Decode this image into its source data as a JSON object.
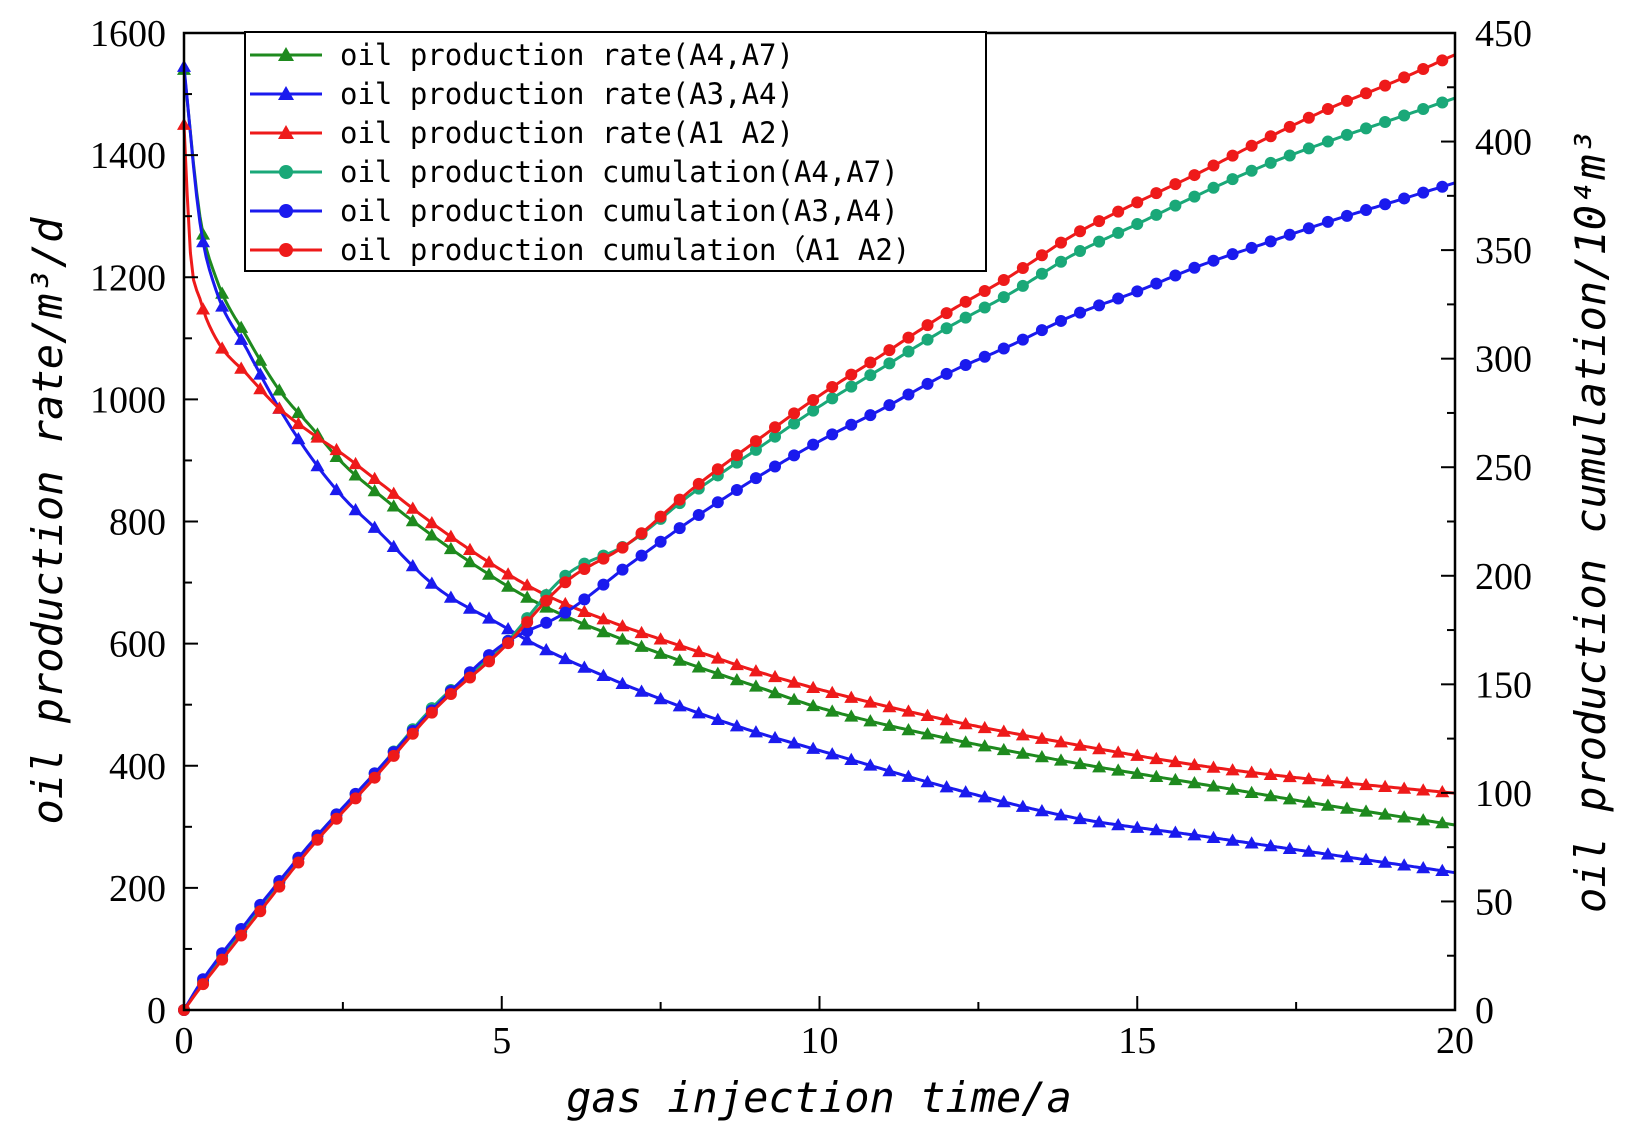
{
  "chart_data": {
    "type": "line",
    "xlabel": "gas injection time/a",
    "ylabel_left": "oil production rate/m³/d",
    "ylabel_right": "oil production cumulation/10⁴m³",
    "xlim": [
      0,
      20
    ],
    "ylim_left": [
      0,
      1600
    ],
    "ylim_right": [
      0,
      450
    ],
    "x_ticks": [
      "0",
      "5",
      "10",
      "15",
      "20"
    ],
    "y_left_ticks": [
      "0",
      "200",
      "400",
      "600",
      "800",
      "1000",
      "1200",
      "1400",
      "1600"
    ],
    "y_right_ticks": [
      "0",
      "50",
      "100",
      "150",
      "200",
      "250",
      "300",
      "350",
      "400",
      "450"
    ],
    "legend_position": "top-left",
    "series": [
      {
        "name": "oil production rate(A4,A7)",
        "axis": "left",
        "marker": "triangle",
        "color": "#1e8a1e",
        "x": [
          0,
          0.25,
          0.5,
          1,
          1.5,
          2,
          2.5,
          3,
          4,
          5,
          5.5,
          6,
          7,
          8,
          9,
          10,
          12,
          14,
          16,
          18,
          20
        ],
        "y": [
          1540,
          1300,
          1200,
          1100,
          1015,
          955,
          895,
          850,
          770,
          700,
          670,
          645,
          603,
          565,
          530,
          495,
          445,
          405,
          370,
          335,
          303
        ]
      },
      {
        "name": "oil production rate(A3,A4)",
        "axis": "left",
        "marker": "triangle",
        "color": "#1a1aee",
        "x": [
          0,
          0.25,
          0.5,
          1,
          1.5,
          2,
          2.5,
          3,
          4,
          5,
          5.5,
          6,
          7,
          8,
          9,
          10,
          12,
          14,
          16,
          18,
          20
        ],
        "y": [
          1545,
          1290,
          1180,
          1080,
          985,
          905,
          840,
          790,
          690,
          630,
          600,
          575,
          530,
          490,
          455,
          425,
          365,
          315,
          285,
          255,
          225
        ]
      },
      {
        "name": "oil production rate(A1 A2)",
        "axis": "left",
        "marker": "triangle",
        "color": "#ee1a1a",
        "x": [
          0,
          0.1,
          0.25,
          0.5,
          1,
          1.5,
          2,
          2.5,
          3,
          4,
          5,
          5.5,
          6,
          7,
          8,
          9,
          10,
          12,
          14,
          16,
          18,
          20
        ],
        "y": [
          1450,
          1240,
          1165,
          1100,
          1040,
          985,
          945,
          910,
          870,
          790,
          720,
          690,
          665,
          625,
          590,
          555,
          525,
          475,
          435,
          400,
          375,
          355
        ]
      },
      {
        "name": "oil production cumulation(A4,A7)",
        "axis": "right",
        "marker": "circle",
        "color": "#1aa878",
        "x": [
          0,
          0.25,
          1,
          2,
          3,
          4,
          5,
          6,
          7,
          8,
          9,
          10,
          11,
          12,
          13,
          14,
          15,
          16,
          17,
          18,
          19,
          20
        ],
        "y": [
          0,
          11,
          40,
          77,
          109,
          142,
          167,
          200,
          215,
          238,
          258,
          278,
          296,
          314,
          330,
          348,
          362,
          376,
          389,
          400,
          410,
          420
        ]
      },
      {
        "name": "oil production cumulation(A3,A4)",
        "axis": "right",
        "marker": "circle",
        "color": "#1a1aee",
        "x": [
          0,
          0.25,
          1,
          2,
          3,
          4,
          5,
          6,
          7,
          8,
          9,
          10,
          11,
          12,
          13,
          14,
          15,
          16,
          17,
          18,
          19,
          20
        ],
        "y": [
          0,
          12,
          41,
          77,
          109,
          141,
          168,
          183,
          205,
          226,
          245,
          262,
          277,
          293,
          306,
          320,
          331,
          343,
          353,
          363,
          372,
          381
        ]
      },
      {
        "name": "oil production cumulation（A1 A2)",
        "axis": "right",
        "marker": "circle",
        "color": "#ee1a1a",
        "x": [
          0,
          0.25,
          1,
          2,
          3,
          4,
          5,
          6,
          7,
          8,
          9,
          10,
          11,
          12,
          13,
          14,
          15,
          16,
          17,
          18,
          19,
          20
        ],
        "y": [
          0,
          10,
          38,
          75,
          107,
          140,
          166,
          197,
          215,
          240,
          262,
          283,
          302,
          321,
          338,
          357,
          372,
          386,
          401,
          415,
          427,
          440
        ]
      }
    ]
  }
}
